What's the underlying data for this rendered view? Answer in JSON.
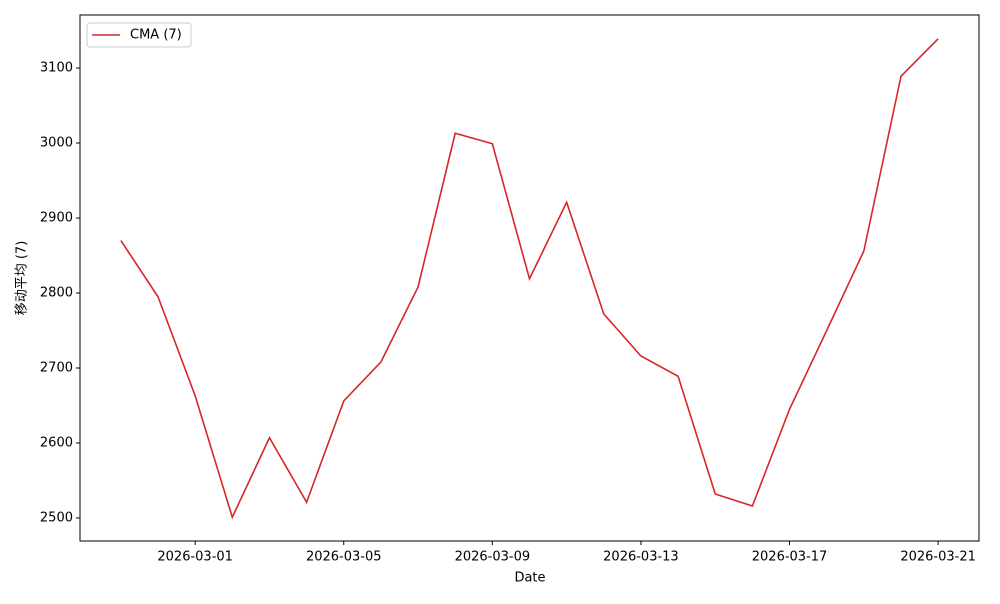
{
  "chart_data": {
    "type": "line",
    "xlabel": "Date",
    "ylabel": "移动平均 (7)",
    "x": [
      "2026-02-27",
      "2026-02-28",
      "2026-03-01",
      "2026-03-02",
      "2026-03-03",
      "2026-03-04",
      "2026-03-05",
      "2026-03-06",
      "2026-03-07",
      "2026-03-08",
      "2026-03-09",
      "2026-03-10",
      "2026-03-11",
      "2026-03-12",
      "2026-03-13",
      "2026-03-14",
      "2026-03-15",
      "2026-03-16",
      "2026-03-17",
      "2026-03-18",
      "2026-03-19",
      "2026-03-20",
      "2026-03-21"
    ],
    "series": [
      {
        "name": "CMA (7)",
        "color": "#d62728",
        "values": [
          2870,
          2795,
          2663,
          2501,
          2607,
          2521,
          2656,
          2708,
          2808,
          3013,
          2999,
          2819,
          2921,
          2772,
          2716,
          2689,
          2532,
          2516,
          2645,
          2750,
          2856,
          3089,
          3139
        ]
      }
    ],
    "xlim": [
      "2026-02-25T21:36Z",
      "2026-03-22T02:24Z"
    ],
    "xticks": [
      "2026-03-01",
      "2026-03-05",
      "2026-03-09",
      "2026-03-13",
      "2026-03-17",
      "2026-03-21"
    ],
    "ylim": [
      2469.3,
      3170.7
    ],
    "yticks": [
      2500,
      2600,
      2700,
      2800,
      2900,
      3000,
      3100
    ],
    "legend": "upper left"
  }
}
